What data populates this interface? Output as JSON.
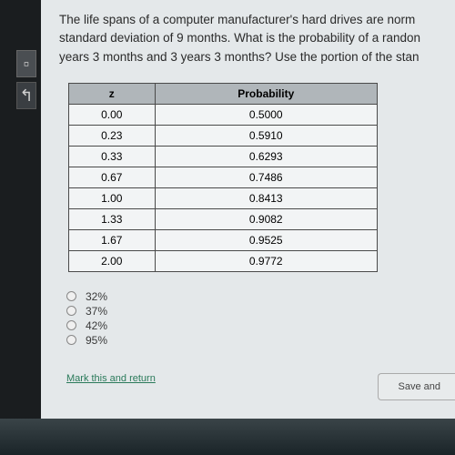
{
  "question": {
    "line1": "The life spans of a computer manufacturer's hard drives are norm",
    "line2": "standard deviation of 9 months. What is the probability of a randon",
    "line3": "years 3 months and 3 years 3 months? Use the portion of the stan"
  },
  "table": {
    "headers": {
      "col1": "z",
      "col2": "Probability"
    },
    "header_bg": "#b0b6ba",
    "cell_bg": "#f2f4f5",
    "border_color": "#4a4a4a",
    "rows": [
      {
        "z": "0.00",
        "p": "0.5000"
      },
      {
        "z": "0.23",
        "p": "0.5910"
      },
      {
        "z": "0.33",
        "p": "0.6293"
      },
      {
        "z": "0.67",
        "p": "0.7486"
      },
      {
        "z": "1.00",
        "p": "0.8413"
      },
      {
        "z": "1.33",
        "p": "0.9082"
      },
      {
        "z": "1.67",
        "p": "0.9525"
      },
      {
        "z": "2.00",
        "p": "0.9772"
      }
    ]
  },
  "options": {
    "a": "32%",
    "b": "37%",
    "c": "42%",
    "d": "95%"
  },
  "mark_link": "Mark this and return",
  "save_btn": "Save and"
}
